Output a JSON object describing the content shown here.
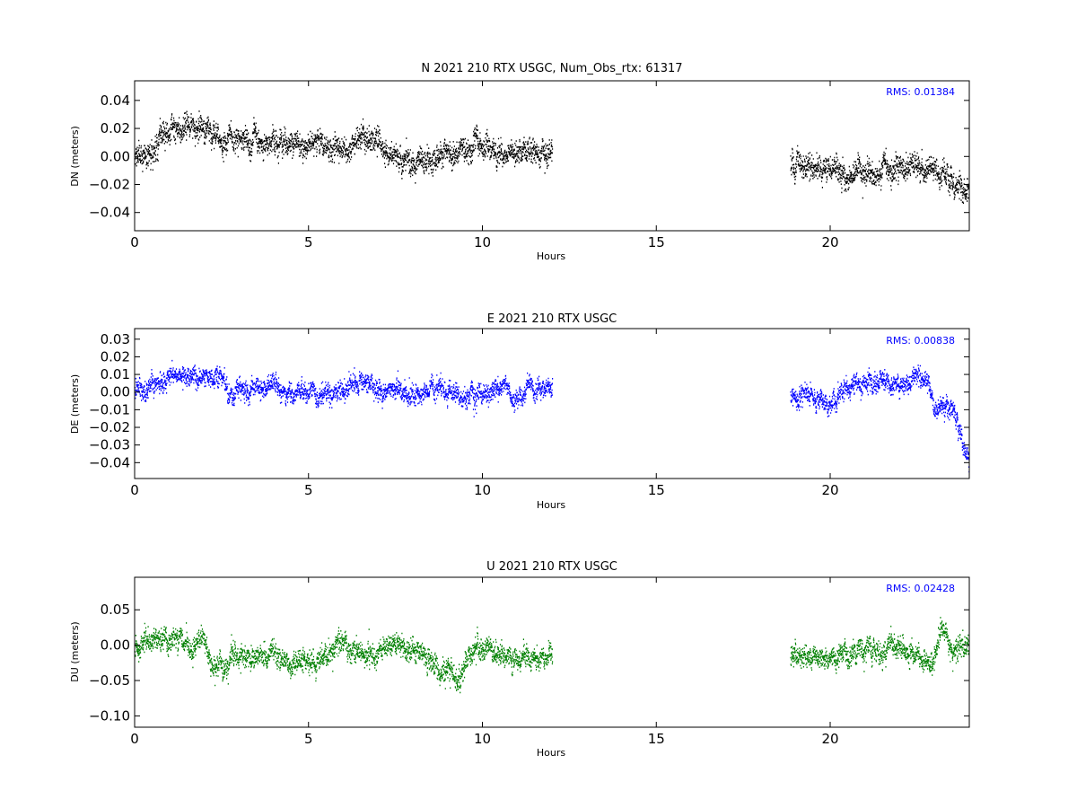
{
  "chart_data": [
    {
      "type": "scatter",
      "title": "N 2021 210 RTX  USGC, Num_Obs_rtx: 61317",
      "xlabel": "Hours",
      "ylabel": "DN (meters)",
      "xlim": [
        0,
        24
      ],
      "ylim": [
        -0.053,
        0.054
      ],
      "xticks": [
        0,
        5,
        10,
        15,
        20
      ],
      "yticks": [
        -0.04,
        -0.02,
        0.0,
        0.02,
        0.04
      ],
      "ytick_labels": [
        "−0.04",
        "−0.02",
        "0.00",
        "0.02",
        "0.04"
      ],
      "annotation": "RMS:  0.01384",
      "annotation_color": "#0000ff",
      "color": "#000000",
      "grid": false,
      "series": [
        {
          "segments": [
            [
              0,
              12.0
            ],
            [
              18.85,
              24
            ]
          ],
          "noise": 0.007,
          "envelope": [
            [
              0,
              -0.002
            ],
            [
              0.5,
              0.006
            ],
            [
              1.0,
              0.018
            ],
            [
              1.5,
              0.024
            ],
            [
              2.0,
              0.02
            ],
            [
              2.5,
              0.01
            ],
            [
              3.0,
              0.018
            ],
            [
              3.5,
              0.012
            ],
            [
              4.0,
              0.012
            ],
            [
              4.5,
              0.01
            ],
            [
              5.0,
              0.008
            ],
            [
              5.5,
              0.01
            ],
            [
              6.0,
              0.006
            ],
            [
              6.5,
              0.014
            ],
            [
              7.0,
              0.01
            ],
            [
              7.5,
              -0.004
            ],
            [
              8.0,
              -0.004
            ],
            [
              8.5,
              -0.002
            ],
            [
              9.0,
              0.002
            ],
            [
              9.5,
              0.006
            ],
            [
              10.0,
              0.006
            ],
            [
              10.5,
              0.002
            ],
            [
              11.0,
              0.006
            ],
            [
              11.5,
              0.006
            ],
            [
              12.0,
              0.002
            ],
            [
              18.85,
              -0.006
            ],
            [
              19.5,
              -0.008
            ],
            [
              20.0,
              -0.01
            ],
            [
              20.5,
              -0.014
            ],
            [
              21.0,
              -0.012
            ],
            [
              21.5,
              -0.006
            ],
            [
              22.0,
              -0.008
            ],
            [
              22.5,
              -0.004
            ],
            [
              23.0,
              -0.008
            ],
            [
              23.5,
              -0.02
            ],
            [
              24.0,
              -0.028
            ]
          ]
        }
      ]
    },
    {
      "type": "scatter",
      "title": "E 2021 210 RTX  USGC",
      "xlabel": "Hours",
      "ylabel": "DE (meters)",
      "xlim": [
        0,
        24
      ],
      "ylim": [
        -0.049,
        0.036
      ],
      "xticks": [
        0,
        5,
        10,
        15,
        20
      ],
      "yticks": [
        -0.04,
        -0.03,
        -0.02,
        -0.01,
        0.0,
        0.01,
        0.02,
        0.03
      ],
      "ytick_labels": [
        "−0.04",
        "−0.03",
        "−0.02",
        "−0.01",
        "0.00",
        "0.01",
        "0.02",
        "0.03"
      ],
      "annotation": "RMS:  0.00838",
      "annotation_color": "#0000ff",
      "color": "#0000ff",
      "grid": false,
      "series": [
        {
          "segments": [
            [
              0,
              12.0
            ],
            [
              18.85,
              24
            ]
          ],
          "noise": 0.0045,
          "envelope": [
            [
              0,
              0.002
            ],
            [
              0.5,
              0.004
            ],
            [
              1.0,
              0.008
            ],
            [
              1.5,
              0.01
            ],
            [
              2.0,
              0.01
            ],
            [
              2.5,
              0.008
            ],
            [
              2.7,
              -0.002
            ],
            [
              3.0,
              0.002
            ],
            [
              3.5,
              0.002
            ],
            [
              4.0,
              0.004
            ],
            [
              4.5,
              -0.002
            ],
            [
              5.0,
              0.0
            ],
            [
              5.5,
              0.0
            ],
            [
              6.0,
              0.0
            ],
            [
              6.5,
              0.006
            ],
            [
              7.0,
              0.002
            ],
            [
              7.5,
              0.0
            ],
            [
              8.0,
              -0.002
            ],
            [
              8.5,
              0.002
            ],
            [
              9.0,
              0.0
            ],
            [
              9.5,
              -0.004
            ],
            [
              10.0,
              0.0
            ],
            [
              10.5,
              0.002
            ],
            [
              11.0,
              -0.002
            ],
            [
              11.5,
              0.002
            ],
            [
              12.0,
              0.004
            ],
            [
              18.85,
              -0.004
            ],
            [
              19.5,
              -0.002
            ],
            [
              20.0,
              -0.008
            ],
            [
              20.5,
              0.002
            ],
            [
              21.0,
              0.004
            ],
            [
              21.5,
              0.008
            ],
            [
              22.0,
              0.002
            ],
            [
              22.5,
              0.01
            ],
            [
              22.8,
              0.008
            ],
            [
              23.0,
              -0.012
            ],
            [
              23.5,
              -0.008
            ],
            [
              24.0,
              -0.04
            ]
          ]
        }
      ]
    },
    {
      "type": "scatter",
      "title": "U 2021 210 RTX  USGC",
      "xlabel": "Hours",
      "ylabel": "DU (meters)",
      "xlim": [
        0,
        24
      ],
      "ylim": [
        -0.116,
        0.096
      ],
      "xticks": [
        0,
        5,
        10,
        15,
        20
      ],
      "yticks": [
        -0.1,
        -0.05,
        0.0,
        0.05
      ],
      "ytick_labels": [
        "−0.10",
        "−0.05",
        "0.00",
        "0.05"
      ],
      "annotation": "RMS:  0.02428",
      "annotation_color": "#0000ff",
      "color": "#008000",
      "grid": false,
      "series": [
        {
          "segments": [
            [
              0,
              12.0
            ],
            [
              18.85,
              24
            ]
          ],
          "noise": 0.013,
          "envelope": [
            [
              0,
              -0.01
            ],
            [
              0.3,
              0.012
            ],
            [
              0.8,
              0.004
            ],
            [
              1.3,
              0.018
            ],
            [
              1.6,
              -0.01
            ],
            [
              2.0,
              0.01
            ],
            [
              2.3,
              -0.04
            ],
            [
              2.8,
              -0.006
            ],
            [
              3.3,
              -0.024
            ],
            [
              3.8,
              -0.01
            ],
            [
              4.3,
              -0.02
            ],
            [
              4.8,
              -0.03
            ],
            [
              5.3,
              -0.02
            ],
            [
              5.8,
              0.004
            ],
            [
              6.3,
              -0.01
            ],
            [
              6.8,
              -0.018
            ],
            [
              7.3,
              0.008
            ],
            [
              7.8,
              -0.004
            ],
            [
              8.3,
              -0.018
            ],
            [
              8.8,
              -0.034
            ],
            [
              9.3,
              -0.046
            ],
            [
              9.8,
              -0.004
            ],
            [
              10.3,
              -0.004
            ],
            [
              10.8,
              -0.016
            ],
            [
              11.3,
              -0.02
            ],
            [
              12.0,
              -0.018
            ],
            [
              18.85,
              -0.016
            ],
            [
              19.5,
              -0.016
            ],
            [
              20.0,
              -0.02
            ],
            [
              20.5,
              -0.016
            ],
            [
              21.0,
              -0.004
            ],
            [
              21.5,
              -0.008
            ],
            [
              22.0,
              -0.006
            ],
            [
              22.5,
              -0.01
            ],
            [
              22.9,
              -0.026
            ],
            [
              23.2,
              0.02
            ],
            [
              23.5,
              -0.008
            ],
            [
              24.0,
              0.004
            ]
          ]
        }
      ]
    }
  ]
}
